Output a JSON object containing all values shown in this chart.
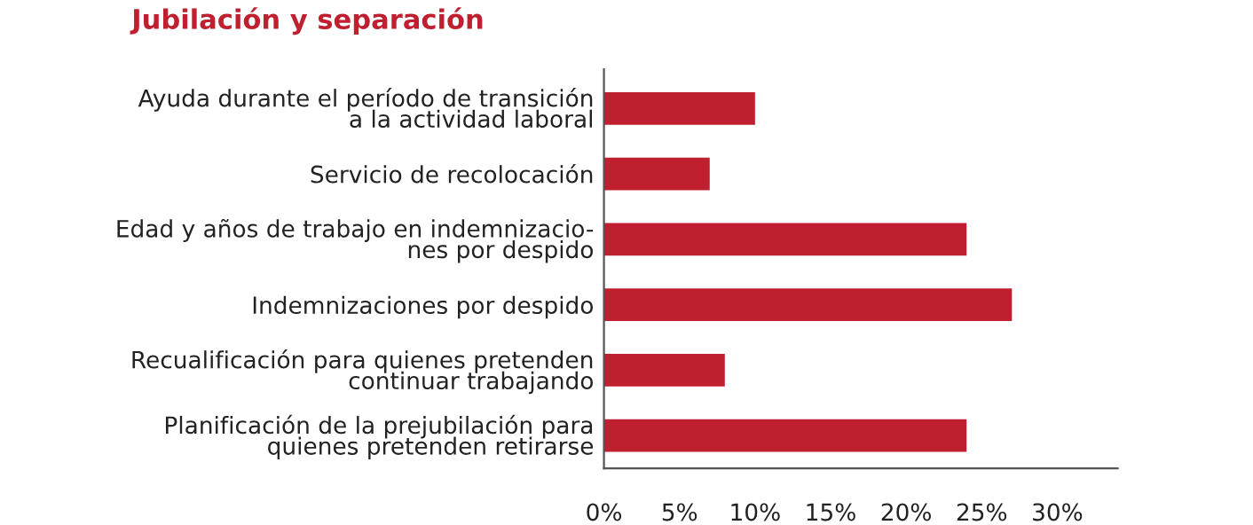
{
  "chart_data": {
    "type": "bar",
    "orientation": "horizontal",
    "title": "Jubilación y separación",
    "categories": [
      "Ayuda durante el período de transición\na la actividad laboral",
      "Servicio de recolocación",
      "Edad y años de trabajo en indemnizacio-\nnes por despido",
      "Indemnizaciones por despido",
      "Recualificación para quienes pretenden\ncontinuar trabajando",
      "Planificación de la prejubilación para\nquienes pretenden retirarse"
    ],
    "values": [
      10,
      7,
      24,
      27,
      8,
      24
    ],
    "color": "#c01f30",
    "xlim": [
      0,
      34
    ],
    "xticks": [
      {
        "value": 0,
        "label": "0%"
      },
      {
        "value": 5,
        "label": "5%"
      },
      {
        "value": 10,
        "label": "10%"
      },
      {
        "value": 15,
        "label": "15%"
      },
      {
        "value": 20,
        "label": "20%"
      },
      {
        "value": 25,
        "label": "25%"
      },
      {
        "value": 30,
        "label": "30%"
      }
    ],
    "grid": false,
    "legend": false
  }
}
